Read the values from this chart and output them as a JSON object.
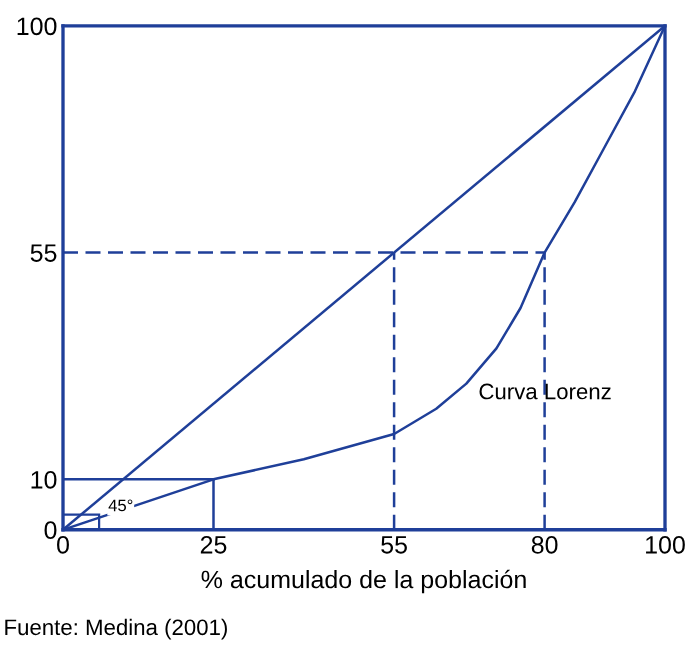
{
  "chart_data": {
    "type": "line",
    "xlabel": "% acumulado de la población",
    "annotations": [
      "Fuente: Medina (2001)",
      "Curva Lorenz",
      "45°"
    ],
    "xlim": [
      0,
      100
    ],
    "ylim": [
      0,
      100
    ],
    "xticks": [
      0,
      25,
      55,
      80,
      100
    ],
    "yticks": [
      0,
      10,
      55,
      100
    ],
    "grid": false,
    "legend": false,
    "marker": "none",
    "series": [
      {
        "color": "#1f3f99",
        "x": [
          0,
          100
        ],
        "values": [
          0,
          100
        ]
      },
      {
        "color": "#1f3f99",
        "x": [
          0,
          10,
          25,
          40,
          55,
          62,
          67,
          72,
          76,
          80,
          85,
          90,
          95,
          100
        ],
        "values": [
          0,
          4,
          10,
          14,
          19,
          24,
          29,
          36,
          44,
          55,
          65,
          76,
          87,
          100
        ]
      },
      {
        "color": "#1f3f99",
        "x": [
          0,
          25
        ],
        "values": [
          10,
          10
        ]
      },
      {
        "color": "#1f3f99",
        "x": [
          25,
          25
        ],
        "values": [
          0,
          10
        ]
      },
      {
        "color": "#1f3f99",
        "x": [
          0,
          80
        ],
        "values": [
          55,
          55
        ],
        "line_style": "dashed"
      },
      {
        "color": "#1f3f99",
        "x": [
          55,
          55
        ],
        "values": [
          0,
          55
        ],
        "line_style": "dashed"
      },
      {
        "color": "#1f3f99",
        "x": [
          80,
          80
        ],
        "values": [
          0,
          55
        ],
        "line_style": "dashed"
      }
    ]
  }
}
